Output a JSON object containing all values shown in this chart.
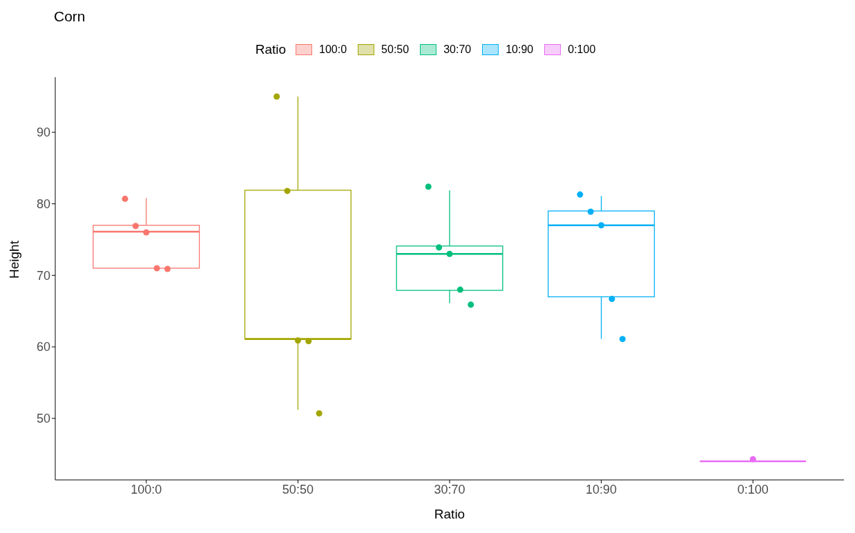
{
  "chart_data": {
    "type": "box",
    "title": "Corn",
    "xlabel": "Ratio",
    "ylabel": "Height",
    "legend_title": "Ratio",
    "legend": "top",
    "grid": false,
    "marker": "circle",
    "categories": [
      "100:0",
      "50:50",
      "30:70",
      "10:90",
      "0:100"
    ],
    "colors": [
      "#f8766d",
      "#a3a500",
      "#00bf7d",
      "#00b0f6",
      "#e76bf3"
    ],
    "boxes": [
      {
        "low": 71.0,
        "q1": 71.0,
        "median": 76.1,
        "q3": 77.0,
        "high": 80.8
      },
      {
        "low": 51.2,
        "q1": 61.1,
        "median": 61.1,
        "q3": 81.9,
        "high": 95.0
      },
      {
        "low": 66.1,
        "q1": 67.9,
        "median": 73.0,
        "q3": 74.1,
        "high": 81.9
      },
      {
        "low": 61.1,
        "q1": 67.0,
        "median": 77.0,
        "q3": 79.0,
        "high": 81.1
      },
      {
        "low": 44.0,
        "q1": 44.0,
        "median": 44.0,
        "q3": 44.0,
        "high": 44.0
      }
    ],
    "series": [
      {
        "type": "scatter",
        "name": "100:0",
        "color": "#f8766d",
        "x": [
          "100:0",
          "100:0",
          "100:0",
          "100:0",
          "100:0"
        ],
        "values": [
          80.7,
          76.9,
          76.0,
          71.0,
          70.9
        ]
      },
      {
        "type": "scatter",
        "name": "50:50",
        "color": "#a3a500",
        "x": [
          "50:50",
          "50:50",
          "50:50",
          "50:50",
          "50:50"
        ],
        "values": [
          95.0,
          81.8,
          60.9,
          60.8,
          50.7
        ]
      },
      {
        "type": "scatter",
        "name": "30:70",
        "color": "#00bf7d",
        "x": [
          "30:70",
          "30:70",
          "30:70",
          "30:70",
          "30:70"
        ],
        "values": [
          82.4,
          73.9,
          73.0,
          68.0,
          65.9
        ]
      },
      {
        "type": "scatter",
        "name": "10:90",
        "color": "#00b0f6",
        "x": [
          "10:90",
          "10:90",
          "10:90",
          "10:90",
          "10:90"
        ],
        "values": [
          81.3,
          78.9,
          77.0,
          66.7,
          61.1
        ]
      },
      {
        "type": "scatter",
        "name": "0:100",
        "color": "#e76bf3",
        "x": [
          "0:100"
        ],
        "values": [
          44.3
        ]
      }
    ],
    "ylim": [
      41.4,
      97.7
    ],
    "yticks": [
      50,
      60,
      70,
      80,
      90
    ]
  }
}
